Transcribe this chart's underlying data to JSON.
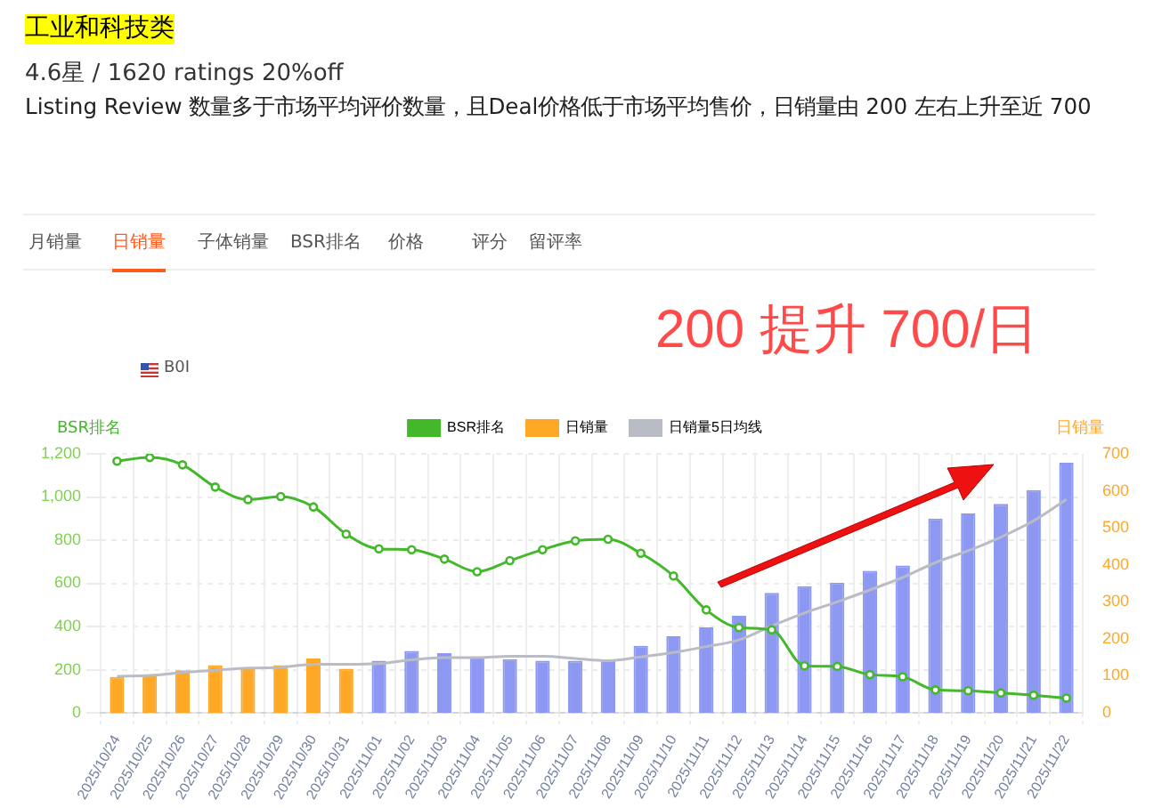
{
  "chart_data": {
    "type": "bar",
    "title": "工业和科技类",
    "subtitle": "4.6星 / 1620 ratings 20%off",
    "annotations": [
      "Listing Review 数量多于市场平均评价数量，且Deal价格低于市场平均售价，日销量由 200 左右上升至近  700",
      "月销量",
      "日销量",
      "子体销量",
      "BSR排名",
      "价格",
      "评分",
      "留评率",
      "B0I",
      "200 提升 700/日"
    ],
    "ylabel": "BSR排名",
    "y2label": "日销量",
    "categories": [
      "2025/10/24",
      "2025/10/25",
      "2025/10/26",
      "2025/10/27",
      "2025/10/28",
      "2025/10/29",
      "2025/10/30",
      "2025/10/31",
      "2025/11/01",
      "2025/11/02",
      "2025/11/03",
      "2025/11/04",
      "2025/11/05",
      "2025/11/06",
      "2025/11/07",
      "2025/11/08",
      "2025/11/09",
      "2025/11/10",
      "2025/11/11",
      "2025/11/12",
      "2025/11/13",
      "2025/11/14",
      "2025/11/15",
      "2025/11/16",
      "2025/11/17",
      "2025/11/18",
      "2025/11/19",
      "2025/11/20",
      "2025/11/21",
      "2025/11/22"
    ],
    "series": [
      {
        "name": "BSR排名",
        "type": "line",
        "marker": "circle",
        "color": "#43b82a",
        "values": [
          1166,
          1183,
          1149,
          1046,
          988,
          1002,
          954,
          828,
          760,
          756,
          712,
          654,
          705,
          756,
          797,
          804,
          739,
          634,
          477,
          395,
          385,
          218,
          215,
          177,
          167,
          106,
          102,
          92,
          82,
          68
        ]
      },
      {
        "name": "日销量",
        "axis": "y2",
        "colors": [
          "#ffa826",
          "#ffa826",
          "#ffa826",
          "#ffa826",
          "#ffa826",
          "#ffa826",
          "#ffa826",
          "#ffa826",
          "#8c98f2",
          "#8c98f2",
          "#8c98f2",
          "#8c98f2",
          "#8c98f2",
          "#8c98f2",
          "#8c98f2",
          "#8c98f2",
          "#8c98f2",
          "#8c98f2",
          "#8c98f2",
          "#8c98f2",
          "#8c98f2",
          "#8c98f2",
          "#8c98f2",
          "#8c98f2",
          "#8c98f2",
          "#8c98f2",
          "#8c98f2",
          "#8c98f2",
          "#8c98f2",
          "#8c98f2"
        ],
        "values": [
          97,
          101,
          115,
          129,
          123,
          129,
          147,
          119,
          141,
          167,
          161,
          149,
          145,
          141,
          141,
          143,
          181,
          207,
          231,
          262,
          324,
          342,
          352,
          384,
          398,
          525,
          539,
          565,
          602,
          676
        ]
      },
      {
        "name": "日销量5日均线",
        "type": "line",
        "axis": "y2",
        "marker": "none",
        "color": "#b9bcc4",
        "values": [
          99,
          101,
          109,
          115,
          121,
          123,
          131,
          131,
          133,
          143,
          149,
          149,
          153,
          153,
          147,
          141,
          151,
          163,
          179,
          197,
          235,
          270,
          300,
          332,
          366,
          406,
          438,
          475,
          519,
          577
        ]
      }
    ],
    "ylim": [
      0,
      1200
    ],
    "yticks": [
      0,
      200,
      400,
      600,
      800,
      {
        "value": 1000,
        "label": "1,000"
      },
      {
        "value": 1200,
        "label": "1,200"
      }
    ],
    "y2lim": [
      0,
      700
    ],
    "y2ticks": [
      0,
      100,
      200,
      300,
      400,
      500,
      600,
      700
    ],
    "grid": true,
    "legend": "top"
  }
}
